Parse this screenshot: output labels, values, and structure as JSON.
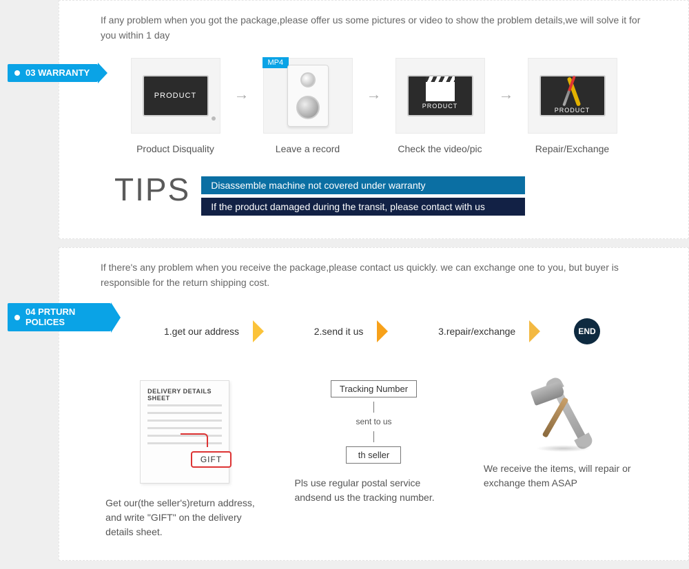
{
  "colors": {
    "badge_bg": "#0aa3e6",
    "tip_bar_a": "#0b6fa3",
    "tip_bar_b": "#122145",
    "chev1": "#fbc33a",
    "chev2": "#f7a11a",
    "chev3": "#f3b942",
    "end_circle": "#0e2a40",
    "panel_bg": "#ffffff",
    "page_bg": "#efefef",
    "text": "#555555"
  },
  "warranty": {
    "badge": "03 WARRANTY",
    "intro": "If any problem when you got the package,please offer us some pictures or video to show the problem details,we will solve it for you within 1 day",
    "mp4_tag": "MP4",
    "monitor_text": "PRODUCT",
    "steps": [
      {
        "label": "Product Disquality"
      },
      {
        "label": "Leave a record"
      },
      {
        "label": "Check the video/pic"
      },
      {
        "label": "Repair/Exchange"
      }
    ],
    "tips_heading": "TIPS",
    "tips": [
      "Disassemble machine not covered under warranty",
      "If the product damaged during the transit, please contact with us"
    ]
  },
  "return": {
    "badge_line1": "04",
    "badge_line2": "PRTURN POLICES",
    "intro": "If  there's any problem when you receive the package,please contact us quickly. we can exchange one to you, but buyer is responsible for the return shipping cost.",
    "flow": [
      "1.get our address",
      "2.send it us",
      "3.repair/exchange"
    ],
    "flow_end": "END",
    "delivery_sheet_title": "DELIVERY DETAILS SHEET",
    "gift_label": "GIFT",
    "tracking": {
      "box1": "Tracking Number",
      "mid": "sent to us",
      "box2": "th seller"
    },
    "col_text": [
      "Get our(the seller's)return address, and write \"GIFT\" on the delivery details sheet.",
      "Pls use regular postal service andsend us the  tracking number.",
      "We receive the items, will repair or exchange  them ASAP"
    ]
  }
}
